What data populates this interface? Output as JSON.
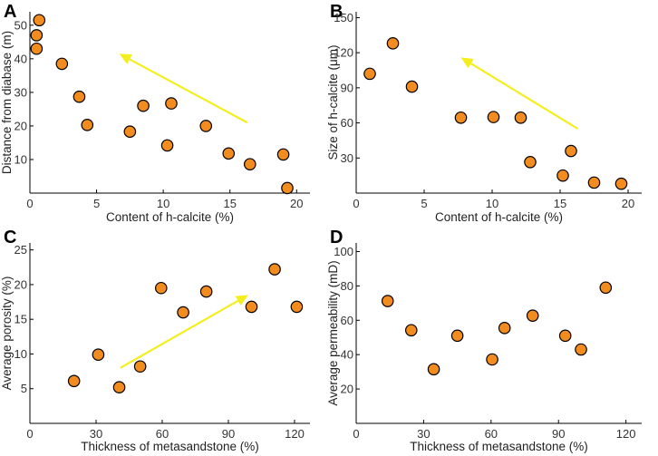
{
  "chart_data": [
    {
      "type": "scatter",
      "panel": "A",
      "xlabel": "Content of h-calcite (%)",
      "ylabel": "Distance from diabase (m)",
      "xlim": [
        0,
        21
      ],
      "ylim": [
        0,
        54
      ],
      "xticks": [
        0,
        5,
        10,
        15,
        20
      ],
      "yticks": [
        10,
        20,
        30,
        40,
        50
      ],
      "points": [
        {
          "x": 0.7,
          "y": 51.5
        },
        {
          "x": 0.5,
          "y": 47
        },
        {
          "x": 0.5,
          "y": 43
        },
        {
          "x": 2.4,
          "y": 38.5
        },
        {
          "x": 3.7,
          "y": 28.7
        },
        {
          "x": 4.3,
          "y": 20.3
        },
        {
          "x": 7.5,
          "y": 18.3
        },
        {
          "x": 8.5,
          "y": 26
        },
        {
          "x": 10.3,
          "y": 14.2
        },
        {
          "x": 10.6,
          "y": 26.7
        },
        {
          "x": 13.2,
          "y": 20
        },
        {
          "x": 14.9,
          "y": 11.8
        },
        {
          "x": 16.5,
          "y": 8.6
        },
        {
          "x": 19,
          "y": 11.5
        },
        {
          "x": 19.3,
          "y": 1.5
        }
      ],
      "arrow": {
        "from": [
          16.3,
          21
        ],
        "to": [
          6.7,
          41.5
        ],
        "color": "#f5ee1e"
      }
    },
    {
      "type": "scatter",
      "panel": "B",
      "xlabel": "Content of h-calcite (%)",
      "ylabel": "Size of h-calcite (μm)",
      "xlim": [
        0,
        21
      ],
      "ylim": [
        0,
        155
      ],
      "xticks": [
        0,
        5,
        10,
        15,
        20
      ],
      "yticks": [
        30,
        60,
        90,
        120,
        150
      ],
      "points": [
        {
          "x": 1,
          "y": 102
        },
        {
          "x": 2.7,
          "y": 128
        },
        {
          "x": 4.1,
          "y": 91
        },
        {
          "x": 7.7,
          "y": 64.5
        },
        {
          "x": 10.1,
          "y": 65
        },
        {
          "x": 12.1,
          "y": 64.5
        },
        {
          "x": 12.8,
          "y": 26.5
        },
        {
          "x": 15.2,
          "y": 15
        },
        {
          "x": 15.8,
          "y": 36
        },
        {
          "x": 17.5,
          "y": 9
        },
        {
          "x": 19.5,
          "y": 8
        }
      ],
      "arrow": {
        "from": [
          16.3,
          55
        ],
        "to": [
          7.7,
          116
        ],
        "color": "#f5ee1e"
      }
    },
    {
      "type": "scatter",
      "panel": "C",
      "xlabel": "Thickness of metasandstone (%)",
      "ylabel": "Average porosity (%)",
      "xlim": [
        0,
        127
      ],
      "ylim": [
        0,
        26
      ],
      "xticks": [
        0,
        30,
        60,
        90,
        120
      ],
      "yticks": [
        5,
        10,
        15,
        20,
        25
      ],
      "points": [
        {
          "x": 20,
          "y": 6.1
        },
        {
          "x": 31,
          "y": 9.9
        },
        {
          "x": 40.5,
          "y": 5.2
        },
        {
          "x": 50,
          "y": 8.2
        },
        {
          "x": 59.5,
          "y": 19.5
        },
        {
          "x": 69.5,
          "y": 16
        },
        {
          "x": 80,
          "y": 19
        },
        {
          "x": 100.5,
          "y": 16.8
        },
        {
          "x": 111,
          "y": 22.2
        },
        {
          "x": 121,
          "y": 16.8
        }
      ],
      "arrow": {
        "from": [
          41,
          8
        ],
        "to": [
          99,
          18.5
        ],
        "color": "#f5ee1e"
      }
    },
    {
      "type": "scatter",
      "panel": "D",
      "xlabel": "Thickness of metasandstone (%)",
      "ylabel": "Average permeability (mD)",
      "xlim": [
        0,
        127
      ],
      "ylim": [
        0,
        105
      ],
      "xticks": [
        0,
        30,
        60,
        90,
        120
      ],
      "yticks": [
        20,
        40,
        60,
        80,
        100
      ],
      "points": [
        {
          "x": 14,
          "y": 71.2
        },
        {
          "x": 24.5,
          "y": 54.2
        },
        {
          "x": 34.5,
          "y": 31.5
        },
        {
          "x": 45,
          "y": 51
        },
        {
          "x": 60.5,
          "y": 37.2
        },
        {
          "x": 66,
          "y": 55.5
        },
        {
          "x": 78.5,
          "y": 62.7
        },
        {
          "x": 93,
          "y": 51
        },
        {
          "x": 100,
          "y": 43
        },
        {
          "x": 111,
          "y": 79
        }
      ],
      "arrow": null
    }
  ]
}
